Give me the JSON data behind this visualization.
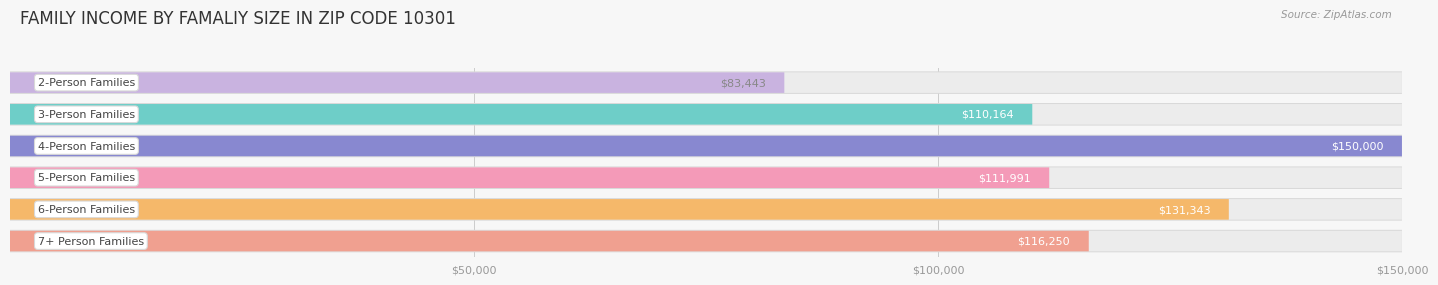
{
  "title": "FAMILY INCOME BY FAMALIY SIZE IN ZIP CODE 10301",
  "source": "Source: ZipAtlas.com",
  "categories": [
    "2-Person Families",
    "3-Person Families",
    "4-Person Families",
    "5-Person Families",
    "6-Person Families",
    "7+ Person Families"
  ],
  "values": [
    83443,
    110164,
    150000,
    111991,
    131343,
    116250
  ],
  "bar_colors": [
    "#c9b3e0",
    "#6ecec8",
    "#8888d0",
    "#f49ab8",
    "#f5b86a",
    "#f0a090"
  ],
  "value_label_colors": [
    "#888888",
    "#ffffff",
    "#ffffff",
    "#ffffff",
    "#ffffff",
    "#ffffff"
  ],
  "value_labels": [
    "$83,443",
    "$110,164",
    "$150,000",
    "$111,991",
    "$131,343",
    "$116,250"
  ],
  "xlim": [
    0,
    150000
  ],
  "xticks": [
    50000,
    100000,
    150000
  ],
  "xtick_labels": [
    "$50,000",
    "$100,000",
    "$150,000"
  ],
  "background_color": "#f7f7f7",
  "bar_bg_color": "#ececec",
  "bar_shadow_color": "#d8d8d8",
  "title_fontsize": 12,
  "label_fontsize": 8,
  "value_fontsize": 8,
  "source_fontsize": 7.5
}
